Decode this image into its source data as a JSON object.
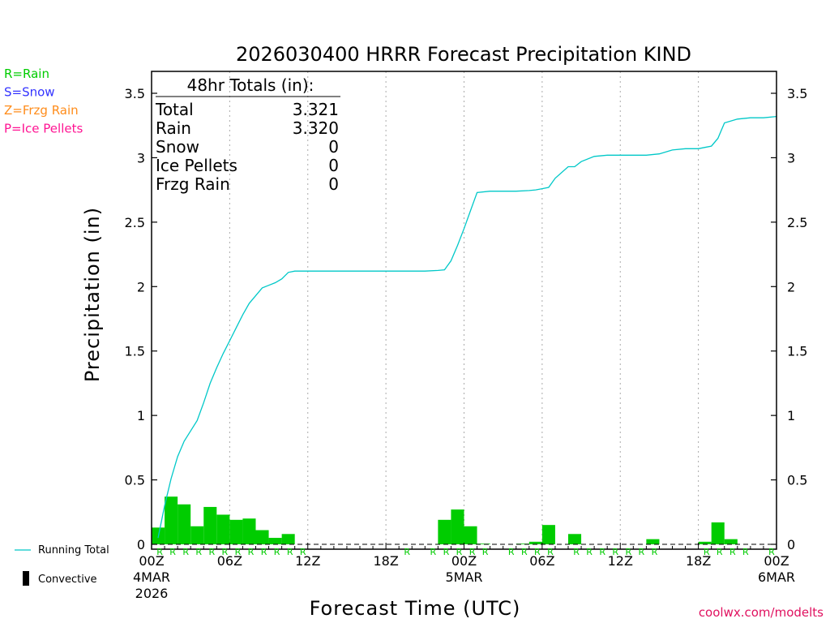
{
  "chart_data": {
    "type": "bar",
    "title": "2026030400 HRRR Forecast Precipitation KIND",
    "xlabel": "Forecast Time (UTC)",
    "ylabel": "Precipitation (in)",
    "ylim": [
      0,
      3.65
    ],
    "xlim_hours": [
      0,
      48
    ],
    "y_ticks": [
      0,
      0.5,
      1,
      1.5,
      2,
      2.5,
      3,
      3.5
    ],
    "y_tick_labels": [
      "0",
      "0.5",
      "1",
      "1.5",
      "2",
      "2.5",
      "3",
      "3.5"
    ],
    "x_ticks": [
      {
        "hour": 0,
        "label": "00Z",
        "date": "4MAR",
        "year": "2026"
      },
      {
        "hour": 6,
        "label": "06Z"
      },
      {
        "hour": 12,
        "label": "12Z"
      },
      {
        "hour": 18,
        "label": "18Z"
      },
      {
        "hour": 24,
        "label": "00Z",
        "date": "5MAR"
      },
      {
        "hour": 30,
        "label": "06Z"
      },
      {
        "hour": 36,
        "label": "12Z"
      },
      {
        "hour": 42,
        "label": "18Z"
      },
      {
        "hour": 48,
        "label": "00Z",
        "date": "6MAR"
      }
    ],
    "grid": "vertical dotted at 6-hour ticks",
    "hourly_precip": {
      "name": "Convective",
      "color": "#00cc00",
      "hours": [
        1,
        2,
        3,
        4,
        5,
        6,
        7,
        8,
        9,
        10,
        11,
        12,
        13,
        14,
        15,
        16,
        17,
        18,
        19,
        20,
        21,
        22,
        23,
        24,
        25,
        26,
        27,
        28,
        29,
        30,
        31,
        32,
        33,
        34,
        35,
        36,
        37,
        38,
        39,
        40,
        41,
        42,
        43,
        44,
        45,
        46,
        47,
        48
      ],
      "values": [
        0.13,
        0.37,
        0.31,
        0.14,
        0.29,
        0.23,
        0.19,
        0.2,
        0.11,
        0.05,
        0.08,
        0.0,
        0.0,
        0.0,
        0.0,
        0.0,
        0.0,
        0.0,
        0.0,
        0.0,
        0.0,
        0.0,
        0.19,
        0.27,
        0.14,
        0.005,
        0.0,
        0.0,
        0.005,
        0.02,
        0.15,
        0.0,
        0.08,
        0.0,
        0.0,
        0.0,
        0.0,
        0.0,
        0.04,
        0.0,
        0.0,
        0.0,
        0.02,
        0.17,
        0.04,
        0.0,
        0.0,
        0.0
      ]
    },
    "running_total": {
      "name": "Running Total",
      "color": "#00c8c8",
      "hours": [
        0.5,
        1.0,
        1.5,
        2.0,
        2.5,
        3.0,
        3.5,
        4.0,
        4.5,
        5.0,
        5.5,
        6.0,
        6.5,
        7.0,
        7.5,
        8.0,
        8.5,
        9.0,
        9.5,
        10.0,
        10.5,
        11.0,
        11.5,
        12.0,
        15.0,
        18.0,
        21.0,
        22.0,
        22.5,
        23.0,
        23.5,
        24.0,
        24.5,
        25.0,
        26.0,
        27.0,
        28.0,
        29.0,
        29.5,
        30.0,
        30.5,
        31.0,
        32.0,
        32.5,
        33.0,
        34.0,
        35.0,
        36.0,
        37.0,
        37.5,
        38.0,
        39.0,
        40.0,
        41.0,
        42.0,
        42.5,
        43.0,
        43.5,
        44.0,
        45.0,
        46.0,
        47.0,
        48.0
      ],
      "values": [
        0.05,
        0.3,
        0.51,
        0.68,
        0.8,
        0.88,
        0.96,
        1.1,
        1.25,
        1.37,
        1.48,
        1.58,
        1.68,
        1.78,
        1.87,
        1.93,
        1.99,
        2.01,
        2.03,
        2.06,
        2.11,
        2.12,
        2.12,
        2.12,
        2.12,
        2.12,
        2.12,
        2.125,
        2.13,
        2.2,
        2.32,
        2.45,
        2.59,
        2.73,
        2.74,
        2.74,
        2.74,
        2.745,
        2.75,
        2.76,
        2.77,
        2.84,
        2.93,
        2.93,
        2.97,
        3.01,
        3.02,
        3.02,
        3.02,
        3.02,
        3.02,
        3.03,
        3.06,
        3.07,
        3.07,
        3.08,
        3.09,
        3.15,
        3.27,
        3.3,
        3.31,
        3.31,
        3.32
      ]
    },
    "precip_type_marks": {
      "symbol": "R",
      "hours": [
        1,
        2,
        3,
        4,
        5,
        6,
        7,
        8,
        9,
        10,
        11,
        12,
        20,
        22,
        23,
        24,
        25,
        26,
        28,
        29,
        30,
        31,
        33,
        34,
        35,
        36,
        37,
        38,
        39,
        43,
        44,
        45,
        46,
        48
      ]
    }
  },
  "totals_box": {
    "header": "48hr Totals (in):",
    "rows": [
      {
        "label": "Total",
        "value": "3.321"
      },
      {
        "label": "Rain",
        "value": "3.320"
      },
      {
        "label": "Snow",
        "value": "0"
      },
      {
        "label": "Ice Pellets",
        "value": "0"
      },
      {
        "label": "Frzg Rain",
        "value": "0"
      }
    ]
  },
  "type_legend": [
    {
      "label": "R=Rain",
      "color": "#00cc00"
    },
    {
      "label": "S=Snow",
      "color": "#3333ff"
    },
    {
      "label": "Z=Frzg Rain",
      "color": "#ff8c1a"
    },
    {
      "label": "P=Ice Pellets",
      "color": "#ff1493"
    }
  ],
  "bottom_legend": {
    "running_total": "Running Total",
    "convective": "Convective"
  },
  "credit": "coolwx.com/modelts",
  "credit_color": "#e0115f"
}
